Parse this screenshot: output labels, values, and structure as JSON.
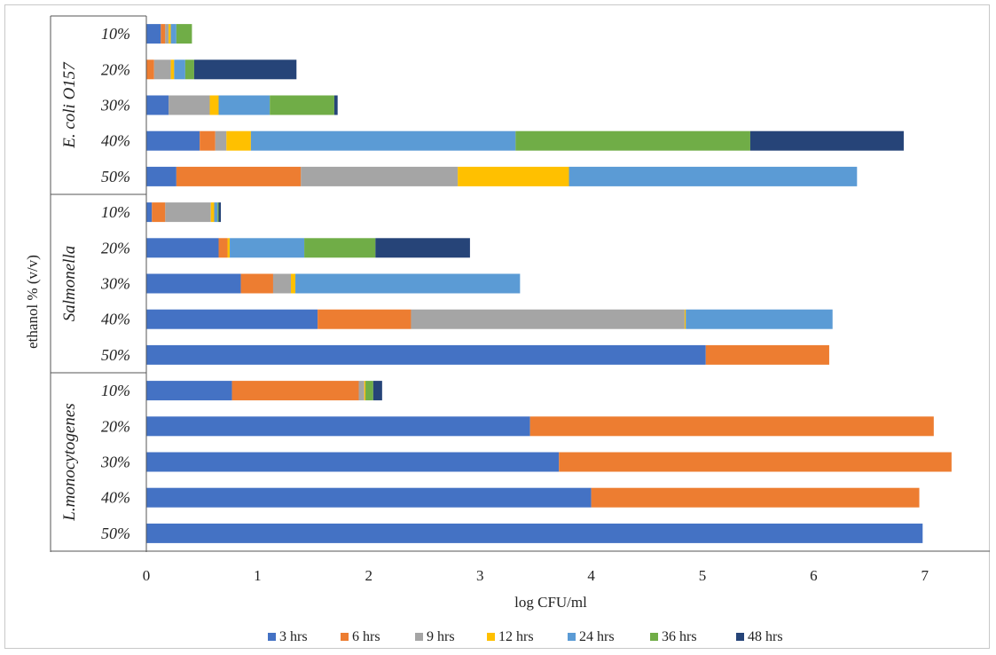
{
  "chart_data": {
    "type": "bar",
    "orientation": "horizontal",
    "stacked": true,
    "title": "",
    "xlabel": "log CFU/ml",
    "ylabel": "ethanol % (v/v)",
    "xlim": [
      0,
      7.25
    ],
    "xticks": [
      "0",
      "1",
      "2",
      "3",
      "4",
      "5",
      "6",
      "7"
    ],
    "grid": false,
    "legend_position": "bottom",
    "legend": [
      {
        "name": "3 hrs",
        "color": "#4472C4"
      },
      {
        "name": "6 hrs",
        "color": "#ED7D31"
      },
      {
        "name": "9 hrs",
        "color": "#A5A5A5"
      },
      {
        "name": "12 hrs",
        "color": "#FFC000"
      },
      {
        "name": "24 hrs",
        "color": "#5B9BD5"
      },
      {
        "name": "36 hrs",
        "color": "#70AD47"
      },
      {
        "name": "48 hrs",
        "color": "#264478"
      }
    ],
    "groups": [
      {
        "name": "E. coli O157",
        "bars": [
          {
            "label": "10%",
            "values": [
              0.13,
              0.04,
              0.03,
              0.02,
              0.05,
              0.14,
              0.0
            ]
          },
          {
            "label": "20%",
            "values": [
              0.0,
              0.07,
              0.15,
              0.03,
              0.1,
              0.08,
              0.92
            ]
          },
          {
            "label": "30%",
            "values": [
              0.2,
              0.0,
              0.37,
              0.08,
              0.46,
              0.58,
              0.03
            ]
          },
          {
            "label": "40%",
            "values": [
              0.48,
              0.14,
              0.1,
              0.22,
              2.38,
              2.11,
              1.38
            ]
          },
          {
            "label": "50%",
            "values": [
              0.27,
              1.12,
              1.41,
              1.0,
              2.59,
              0.0,
              0.0
            ]
          }
        ]
      },
      {
        "name": "Salmonella",
        "bars": [
          {
            "label": "10%",
            "values": [
              0.05,
              0.12,
              0.41,
              0.03,
              0.03,
              0.01,
              0.02
            ]
          },
          {
            "label": "20%",
            "values": [
              0.65,
              0.08,
              0.0,
              0.02,
              0.67,
              0.64,
              0.85
            ]
          },
          {
            "label": "30%",
            "values": [
              0.85,
              0.29,
              0.16,
              0.04,
              2.02,
              0.0,
              0.0
            ]
          },
          {
            "label": "40%",
            "values": [
              1.54,
              0.84,
              2.46,
              0.01,
              1.32,
              0.0,
              0.0
            ]
          },
          {
            "label": "50%",
            "values": [
              5.03,
              1.11,
              0.0,
              0.0,
              0.0,
              0.0,
              0.0
            ]
          }
        ]
      },
      {
        "name": "L.monocytogenes",
        "bars": [
          {
            "label": "10%",
            "values": [
              0.77,
              1.14,
              0.05,
              0.01,
              0.0,
              0.07,
              0.08
            ]
          },
          {
            "label": "20%",
            "values": [
              3.45,
              3.63,
              0.0,
              0.0,
              0.0,
              0.0,
              0.0
            ]
          },
          {
            "label": "30%",
            "values": [
              3.71,
              3.53,
              0.0,
              0.0,
              0.0,
              0.0,
              0.0
            ]
          },
          {
            "label": "40%",
            "values": [
              4.0,
              2.95,
              0.0,
              0.0,
              0.0,
              0.0,
              0.0
            ]
          },
          {
            "label": "50%",
            "values": [
              6.98,
              0.0,
              0.0,
              0.0,
              0.0,
              0.0,
              0.0
            ]
          }
        ]
      }
    ]
  }
}
